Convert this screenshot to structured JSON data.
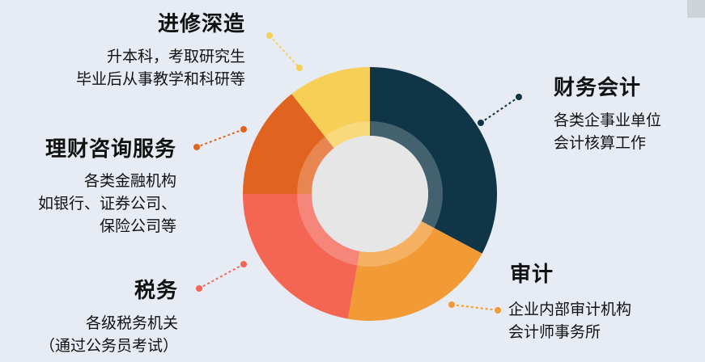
{
  "segments": [
    {
      "key": "finance_accounting",
      "title": "财务会计",
      "lines": [
        "各类企事业单位",
        "会计核算工作"
      ],
      "color": "#0f3547"
    },
    {
      "key": "audit",
      "title": "审计",
      "lines": [
        "企业内部审计机构",
        "会计师事务所"
      ],
      "color": "#f29a35"
    },
    {
      "key": "tax",
      "title": "税务",
      "lines": [
        "各级税务机关",
        "（通过公务员考试）"
      ],
      "color": "#f46554"
    },
    {
      "key": "wealth_consulting",
      "title": "理财咨询服务",
      "lines": [
        "各类金融机构",
        "如银行、证券公司、",
        "保险公司等"
      ],
      "color": "#e0641f"
    },
    {
      "key": "further_study",
      "title": "进修深造",
      "lines": [
        "升本科，考取研究生",
        "毕业后从事教学和科研等"
      ],
      "color": "#f7cf57"
    }
  ],
  "colors": {
    "background": "#e6ebf4",
    "inner_ring": "#ececec",
    "center": "#e6e6e6"
  }
}
